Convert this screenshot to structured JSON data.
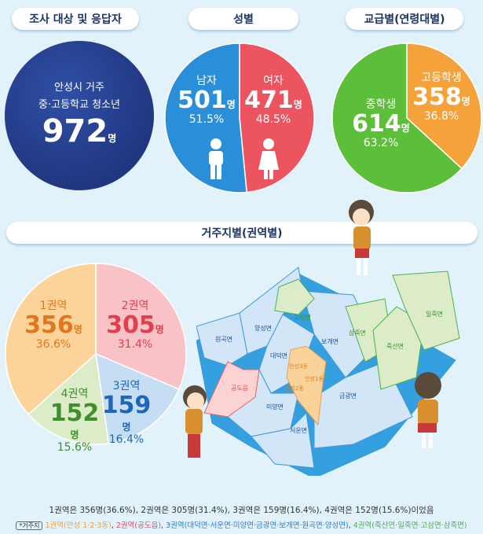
{
  "headers": {
    "respondents": "조사 대상 및 응답자",
    "gender": "성별",
    "school": "교급별(연령대별)",
    "region": "거주지별(권역별)"
  },
  "respondents": {
    "line1": "안성시 거주",
    "line2": "중·고등학교 청소년",
    "total": "972",
    "unit": "명"
  },
  "gender": {
    "male": {
      "label": "남자",
      "count": "501",
      "unit": "명",
      "pct": "51.5%"
    },
    "female": {
      "label": "여자",
      "count": "471",
      "unit": "명",
      "pct": "48.5%"
    }
  },
  "school": {
    "middle": {
      "label": "중학생",
      "count": "614",
      "unit": "명",
      "pct": "63.2%"
    },
    "high": {
      "label": "고등학생",
      "count": "358",
      "unit": "명",
      "pct": "36.8%"
    }
  },
  "regions": [
    {
      "label": "1권역",
      "count": "356",
      "unit": "명",
      "pct": "36.6%"
    },
    {
      "label": "2권역",
      "count": "305",
      "unit": "명",
      "pct": "31.4%"
    },
    {
      "label": "3권역",
      "count": "159",
      "unit": "명",
      "pct": "16.4%"
    },
    {
      "label": "4권역",
      "count": "152",
      "unit": "명",
      "pct": "15.6%"
    }
  ],
  "map_labels": {
    "wongok": "원곡면",
    "yangseong": "양성면",
    "gosam": "고삼면",
    "bogae": "보개면",
    "samjuk": "삼죽면",
    "iljuk": "일죽면",
    "juksan": "죽산면",
    "daedeok": "대덕면",
    "anseong3": "안성3동",
    "anseong1": "안성1동",
    "anseong2": "안성2동",
    "gongdo": "공도읍",
    "miyang": "미양면",
    "seoun": "서운면",
    "geumgwang": "금광면"
  },
  "summary": "1권역은 356명(36.6%), 2권역은 305명(31.4%), 3권역은 159명(16.4%), 4권역은 152명(15.6%)이었음",
  "legend": {
    "tag": "*거주지",
    "r1": "1권역(안성 1·2·3동)",
    "r2": "2권역(공도읍)",
    "r3": "3권역(대덕면·서운면·미양면·금광면·보개면·원곡면·양성면)",
    "r4": "4권역(죽산면·일죽면·고삼면·삼죽면)",
    "sep": ", "
  },
  "colors": {
    "navy": "#233a86",
    "male": "#2a8fd8",
    "female": "#ec5460",
    "middle": "#5cbf3a",
    "high": "#f6a23a",
    "r1": "#fcd49a",
    "r2": "#f8c2c6",
    "r3": "#c5def3",
    "r4": "#dcecc8"
  },
  "chart_data": [
    {
      "type": "pie",
      "categories": [
        "남자",
        "여자"
      ],
      "values": [
        501,
        471
      ],
      "percent": [
        51.5,
        48.5
      ]
    },
    {
      "type": "pie",
      "categories": [
        "중학생",
        "고등학생"
      ],
      "values": [
        614,
        358
      ],
      "percent": [
        63.2,
        36.8
      ]
    },
    {
      "type": "pie",
      "categories": [
        "1권역",
        "2권역",
        "3권역",
        "4권역"
      ],
      "values": [
        356,
        305,
        159,
        152
      ],
      "percent": [
        36.6,
        31.4,
        16.4,
        15.6
      ]
    }
  ]
}
